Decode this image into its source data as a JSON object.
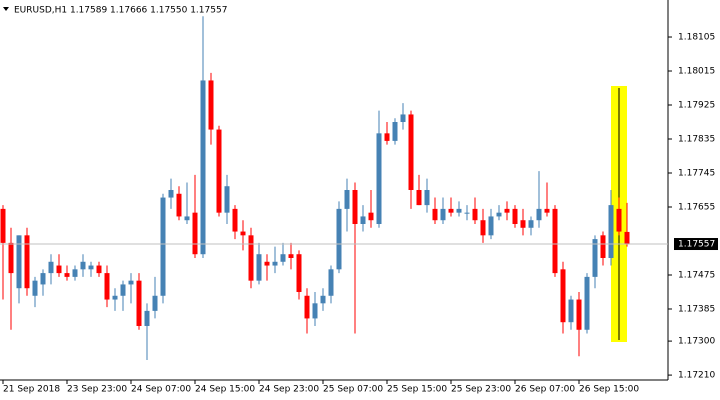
{
  "chart_data": {
    "type": "candlestick",
    "title": "EURUSD,H1  1.17589 1.17666 1.17550 1.17557",
    "categories": [
      "21 Sep 2018",
      null,
      null,
      null,
      null,
      null,
      null,
      null,
      "23 Sep 23:00",
      null,
      null,
      null,
      null,
      null,
      null,
      null,
      "24 Sep 07:00",
      null,
      null,
      null,
      null,
      null,
      null,
      null,
      "24 Sep 15:00",
      null,
      null,
      null,
      null,
      null,
      null,
      null,
      "24 Sep 23:00",
      null,
      null,
      null,
      null,
      null,
      null,
      null,
      "25 Sep 07:00",
      null,
      null,
      null,
      null,
      null,
      null,
      null,
      "25 Sep 15:00",
      null,
      null,
      null,
      null,
      null,
      null,
      null,
      "25 Sep 23:00",
      null,
      null,
      null,
      null,
      null,
      null,
      null,
      "26 Sep 07:00",
      null,
      null,
      null,
      null,
      null,
      null,
      null,
      "26 Sep 15:00",
      null,
      null,
      null,
      null,
      null,
      null
    ],
    "open": [
      1.1765,
      1.1756,
      1.1744,
      1.1758,
      1.1742,
      1.1745,
      1.1748,
      1.175,
      1.1748,
      1.1747,
      1.1749,
      1.1749,
      1.175,
      1.1748,
      1.1741,
      1.1742,
      1.1745,
      1.1746,
      1.1734,
      1.1738,
      1.1742,
      1.1768,
      1.1769,
      1.1762,
      1.1764,
      1.1753,
      1.1799,
      1.1786,
      1.1764,
      1.1765,
      1.1759,
      1.1758,
      1.1746,
      1.1751,
      1.175,
      1.1751,
      1.1753,
      1.1753,
      1.1742,
      1.1736,
      1.174,
      1.1742,
      1.1749,
      1.1765,
      1.177,
      1.1761,
      1.1764,
      1.1761,
      1.1785,
      1.1783,
      1.1788,
      1.179,
      1.177,
      1.1766,
      1.1765,
      1.1762,
      1.1765,
      1.1764,
      1.1764,
      1.1765,
      1.1762,
      1.1758,
      1.1763,
      1.1765,
      1.1765,
      1.1762,
      1.176,
      1.1762,
      1.1765,
      1.1765,
      1.1749,
      1.1735,
      1.1741,
      1.1733,
      1.1747,
      1.1758,
      1.1752,
      1.1765,
      1.17589
    ],
    "high": [
      1.1766,
      1.176,
      1.1758,
      1.176,
      1.1747,
      1.1749,
      1.1753,
      1.1753,
      1.175,
      1.175,
      1.1753,
      1.1751,
      1.1751,
      1.175,
      1.1744,
      1.1746,
      1.1748,
      1.1748,
      1.174,
      1.1747,
      1.1769,
      1.1773,
      1.1771,
      1.1772,
      1.1774,
      1.1816,
      1.1801,
      1.1787,
      1.1774,
      1.1766,
      1.1762,
      1.176,
      1.1756,
      1.1753,
      1.1755,
      1.1756,
      1.1756,
      1.1754,
      1.1744,
      1.1743,
      1.1744,
      1.175,
      1.1767,
      1.1773,
      1.1772,
      1.1766,
      1.177,
      1.1791,
      1.1788,
      1.1789,
      1.1793,
      1.1791,
      1.1774,
      1.1773,
      1.1768,
      1.1768,
      1.1768,
      1.1767,
      1.1766,
      1.1768,
      1.1765,
      1.1765,
      1.1766,
      1.1767,
      1.1766,
      1.1765,
      1.1763,
      1.1775,
      1.1772,
      1.1766,
      1.1751,
      1.1742,
      1.1743,
      1.1748,
      1.1758,
      1.1759,
      1.177,
      1.1768,
      1.17666
    ],
    "low": [
      1.1741,
      1.1733,
      1.174,
      1.1742,
      1.1739,
      1.1742,
      1.1745,
      1.1747,
      1.1746,
      1.1746,
      1.1747,
      1.1747,
      1.1747,
      1.1739,
      1.1738,
      1.1738,
      1.174,
      1.1733,
      1.1725,
      1.1736,
      1.174,
      1.1765,
      1.1762,
      1.1761,
      1.1752,
      1.1752,
      1.1782,
      1.1763,
      1.1761,
      1.1757,
      1.1754,
      1.1744,
      1.1745,
      1.1746,
      1.1748,
      1.175,
      1.1749,
      1.1741,
      1.1732,
      1.1734,
      1.1738,
      1.174,
      1.1748,
      1.1759,
      1.1732,
      1.1759,
      1.176,
      1.176,
      1.1782,
      1.1782,
      1.1786,
      1.1765,
      1.1766,
      1.1764,
      1.1761,
      1.1761,
      1.1763,
      1.1763,
      1.1762,
      1.1761,
      1.1756,
      1.1757,
      1.1762,
      1.1762,
      1.176,
      1.1758,
      1.1758,
      1.176,
      1.1763,
      1.1747,
      1.1732,
      1.1733,
      1.1726,
      1.1732,
      1.1744,
      1.175,
      1.175,
      1.1758,
      1.1755
    ],
    "close": [
      1.1756,
      1.1748,
      1.1758,
      1.1744,
      1.1746,
      1.1748,
      1.1751,
      1.1748,
      1.1747,
      1.1749,
      1.1751,
      1.175,
      1.1748,
      1.1741,
      1.1742,
      1.1745,
      1.1746,
      1.1734,
      1.1738,
      1.1742,
      1.1768,
      1.177,
      1.1763,
      1.1763,
      1.1753,
      1.1799,
      1.1786,
      1.1764,
      1.1771,
      1.1759,
      1.1758,
      1.1746,
      1.1753,
      1.175,
      1.1751,
      1.1753,
      1.1752,
      1.1743,
      1.1736,
      1.174,
      1.1742,
      1.1749,
      1.1765,
      1.177,
      1.1761,
      1.1763,
      1.1762,
      1.1785,
      1.1783,
      1.1788,
      1.179,
      1.177,
      1.1766,
      1.177,
      1.1762,
      1.1765,
      1.1764,
      1.1765,
      1.1764,
      1.1762,
      1.1758,
      1.1763,
      1.1764,
      1.1764,
      1.1761,
      1.176,
      1.1762,
      1.1765,
      1.1764,
      1.1748,
      1.1735,
      1.1741,
      1.1733,
      1.1747,
      1.1757,
      1.1752,
      1.1766,
      1.1759,
      1.17557
    ],
    "up_color": "#4682b4",
    "down_color": "#ff0000",
    "price_line": 1.17557,
    "ylim": [
      1.17197,
      1.18203
    ],
    "yticks": [
      1.18105,
      1.18015,
      1.17925,
      1.17835,
      1.17745,
      1.17655,
      1.17475,
      1.17385,
      {
        "value": 1.173,
        "label": "1.17300"
      },
      {
        "value": 1.1721,
        "label": "1.17210"
      }
    ],
    "grid": false
  }
}
